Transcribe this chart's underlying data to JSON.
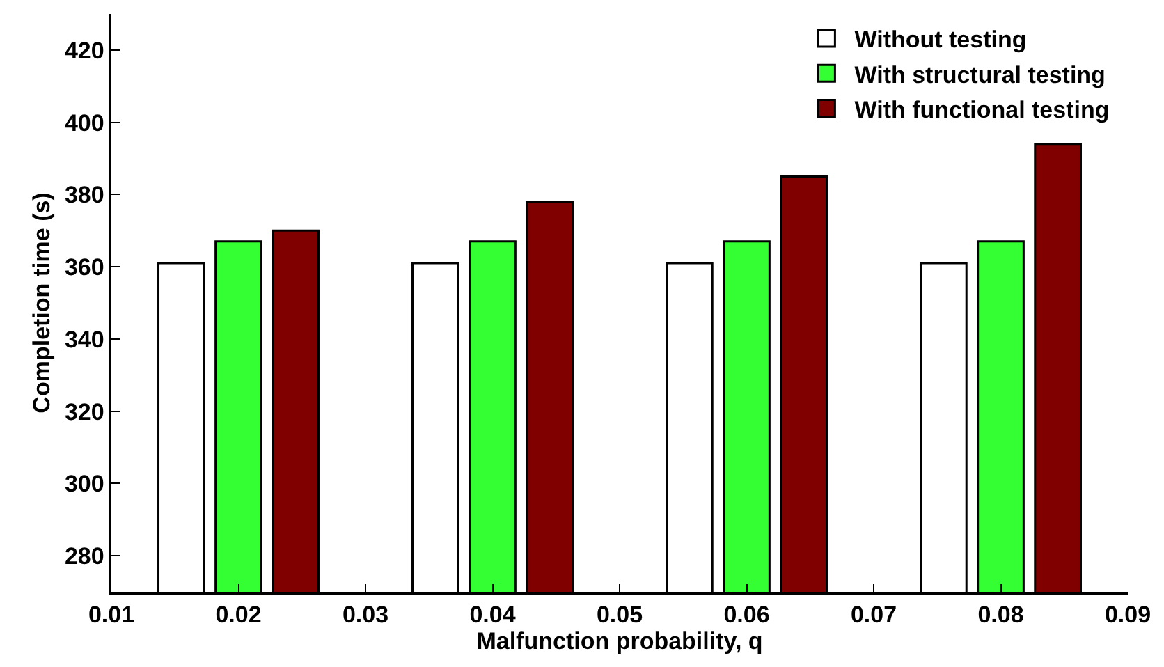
{
  "chart_data": {
    "type": "bar",
    "xlabel": "Malfunction probability, q",
    "ylabel": "Completion time (s)",
    "xlim": [
      0.01,
      0.09
    ],
    "xticks": [
      0.01,
      0.02,
      0.03,
      0.04,
      0.05,
      0.06,
      0.07,
      0.08,
      0.09
    ],
    "ylim": [
      270,
      430
    ],
    "yticks": [
      280,
      300,
      320,
      340,
      360,
      380,
      400,
      420
    ],
    "legend": "top right",
    "series": [
      {
        "name": "Without testing",
        "color": "#ffffff",
        "x": [
          0.0155,
          0.0355,
          0.0555,
          0.0755
        ],
        "values": [
          361,
          361,
          361,
          361
        ]
      },
      {
        "name": "With structural testing",
        "color": "#33ff33",
        "x": [
          0.02,
          0.04,
          0.06,
          0.08
        ],
        "values": [
          367,
          367,
          367,
          367
        ]
      },
      {
        "name": "With functional testing",
        "color": "#800000",
        "x": [
          0.0245,
          0.0445,
          0.0645,
          0.0845
        ],
        "values": [
          370,
          378,
          385,
          394
        ]
      }
    ]
  }
}
